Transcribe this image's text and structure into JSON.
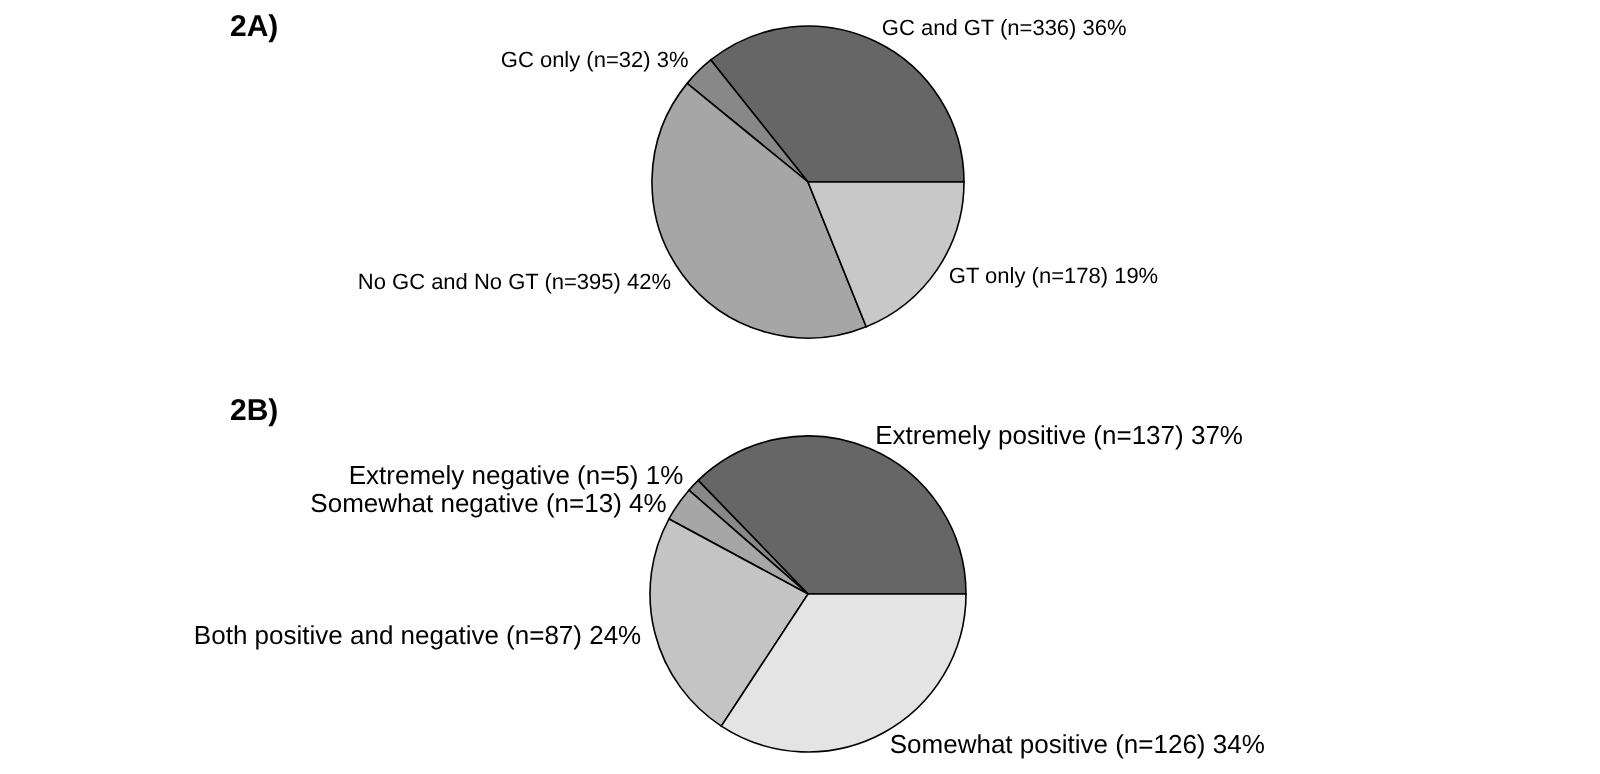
{
  "chart_data": [
    {
      "type": "pie",
      "title": "2A)",
      "categories": [
        "GC and GT",
        "GC only",
        "No GC and No GT",
        "GT only"
      ],
      "values": [
        336,
        32,
        395,
        178
      ],
      "value_labels": [
        "(n=336) 36%",
        "(n=32) 3%",
        "(n=395) 42%",
        "(n=178) 19%"
      ],
      "colors": [
        "#666666",
        "#888888",
        "#a6a6a6",
        "#c8c8c8"
      ]
    },
    {
      "type": "pie",
      "title": "2B)",
      "categories": [
        "Extremely positive",
        "Extremely negative",
        "Somewhat negative",
        "Both positive and negative",
        "Somewhat positive"
      ],
      "values": [
        137,
        5,
        13,
        87,
        126
      ],
      "value_labels": [
        "(n=137) 37%",
        "(n=5) 1%",
        "(n=13) 4%",
        "(n=87) 24%",
        "(n=126) 34%"
      ],
      "colors": [
        "#666666",
        "#888888",
        "#a6a6a6",
        "#c4c4c4",
        "#e4e4e4"
      ]
    }
  ]
}
